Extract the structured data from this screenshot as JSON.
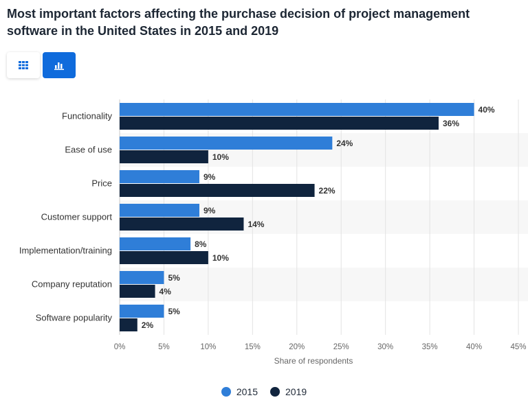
{
  "chart_data": {
    "type": "bar",
    "orientation": "horizontal",
    "title": "Most important factors affecting the purchase decision of project management software in the United States in 2015 and 2019",
    "categories": [
      "Functionality",
      "Ease of use",
      "Price",
      "Customer support",
      "Implementation/training",
      "Company reputation",
      "Software popularity"
    ],
    "series": [
      {
        "name": "2015",
        "color": "#2f7ed8",
        "values": [
          40,
          24,
          9,
          9,
          8,
          5,
          5
        ]
      },
      {
        "name": "2019",
        "color": "#10243e",
        "values": [
          36,
          10,
          22,
          14,
          10,
          4,
          2
        ]
      }
    ],
    "xlabel": "Share of respondents",
    "ylabel": "",
    "xlim": [
      0,
      45
    ],
    "ticks": [
      0,
      5,
      10,
      15,
      20,
      25,
      30,
      35,
      40,
      45
    ],
    "tick_suffix": "%",
    "legend_position": "bottom-center",
    "grid": true
  },
  "toolbar": {
    "table_icon": "grid-icon",
    "chart_icon": "bar-chart-icon",
    "active_color": "#0f6bdc"
  }
}
